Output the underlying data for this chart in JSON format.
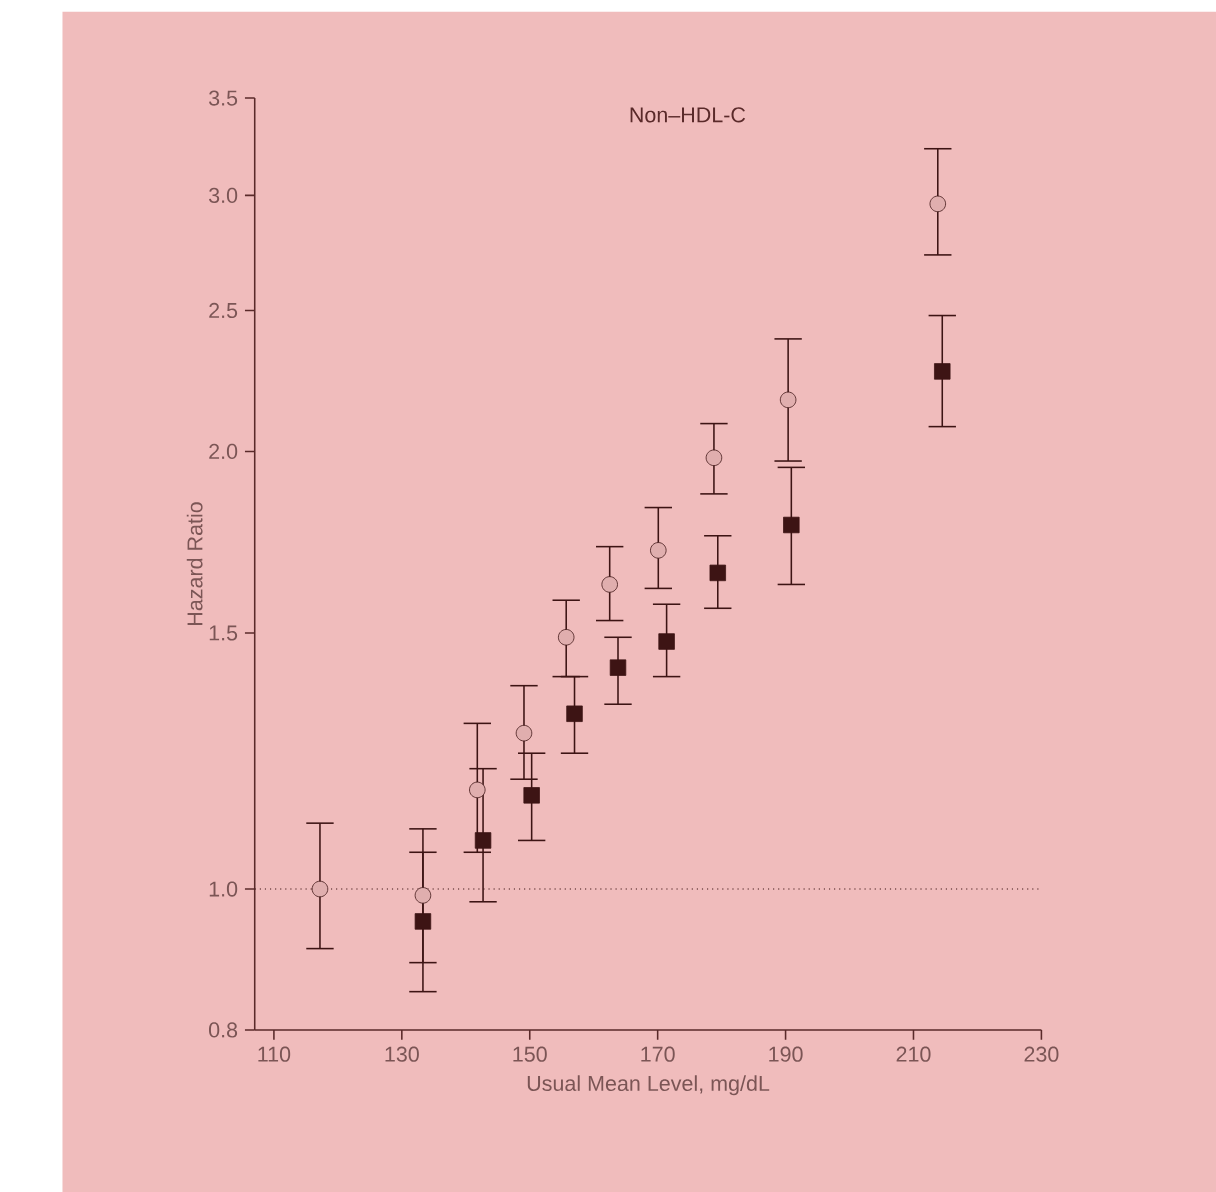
{
  "chart_data": {
    "type": "scatter",
    "title": "Non–HDL-C",
    "xlabel": "Usual Mean Level, mg/dL",
    "ylabel": "Hazard Ratio",
    "log": "y",
    "grid": false,
    "xlim": [
      107,
      230
    ],
    "xticks": [
      110,
      130,
      150,
      170,
      190,
      210,
      230
    ],
    "ylim": [
      0.8,
      3.5
    ],
    "yticks": [
      0.8,
      {
        "value": 1.0,
        "label": "1.0"
      },
      1.5,
      {
        "value": 2.0,
        "label": "2.0"
      },
      2.5,
      {
        "value": 3.0,
        "label": "3.0"
      },
      3.5
    ],
    "ref_lines": [
      {
        "axis": "y",
        "value": 1.0,
        "line_style": "dotted",
        "color": "#3d1414"
      }
    ],
    "series": [
      {
        "color": "#e0aeae",
        "marker": "circle",
        "x": [
          117.2,
          133.3,
          141.8,
          149.1,
          155.7,
          162.5,
          170.1,
          178.8,
          190.4,
          213.8
        ],
        "values": [
          1.0,
          0.99,
          1.17,
          1.28,
          1.49,
          1.62,
          1.71,
          1.98,
          2.17,
          2.96
        ],
        "errors": [
          [
            0.91,
            1.11
          ],
          [
            0.89,
            1.1
          ],
          [
            1.06,
            1.3
          ],
          [
            1.19,
            1.38
          ],
          [
            1.4,
            1.58
          ],
          [
            1.53,
            1.72
          ],
          [
            1.61,
            1.83
          ],
          [
            1.87,
            2.09
          ],
          [
            1.97,
            2.39
          ],
          [
            2.73,
            3.23
          ]
        ]
      },
      {
        "color": "#3d1414",
        "marker": "square",
        "x": [
          133.3,
          142.7,
          150.3,
          157.0,
          163.8,
          171.4,
          179.4,
          190.9,
          214.5
        ],
        "values": [
          0.95,
          1.08,
          1.16,
          1.32,
          1.42,
          1.48,
          1.65,
          1.78,
          2.27
        ],
        "errors": [
          [
            0.85,
            1.06
          ],
          [
            0.98,
            1.21
          ],
          [
            1.08,
            1.24
          ],
          [
            1.24,
            1.4
          ],
          [
            1.34,
            1.49
          ],
          [
            1.4,
            1.57
          ],
          [
            1.56,
            1.75
          ],
          [
            1.62,
            1.95
          ],
          [
            2.08,
            2.48
          ]
        ]
      }
    ]
  }
}
